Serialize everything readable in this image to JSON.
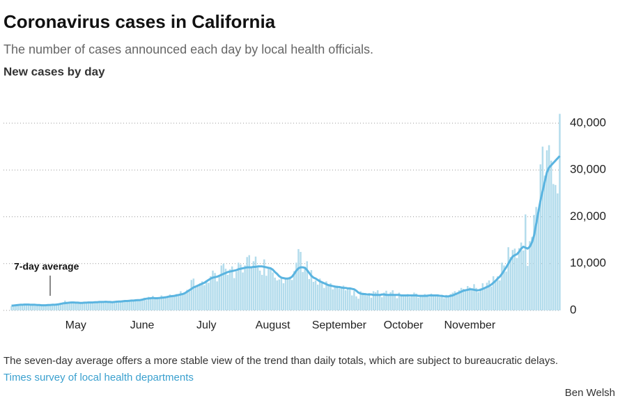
{
  "chart_data": {
    "type": "bar-line",
    "title": "Coronavirus cases in California",
    "subtitle": "The number of cases announced each day by local health officials.",
    "chart_heading": "New cases by day",
    "note": "The seven-day average offers a more stable view of the trend than daily totals, which are subject to bureaucratic delays.",
    "source": "Times survey of local health departments",
    "byline": "Ben Welsh",
    "categories": [
      null,
      null,
      null,
      null,
      null,
      null,
      null,
      null,
      null,
      null,
      null,
      null,
      null,
      null,
      null,
      null,
      null,
      null,
      null,
      null,
      null,
      null,
      null,
      null,
      null,
      null,
      null,
      null,
      null,
      null,
      "May",
      null,
      null,
      null,
      null,
      null,
      null,
      null,
      null,
      null,
      null,
      null,
      null,
      null,
      null,
      null,
      null,
      null,
      null,
      null,
      null,
      null,
      null,
      null,
      null,
      null,
      null,
      null,
      null,
      null,
      null,
      "June",
      null,
      null,
      null,
      null,
      null,
      null,
      null,
      null,
      null,
      null,
      null,
      null,
      null,
      null,
      null,
      null,
      null,
      null,
      null,
      null,
      null,
      null,
      null,
      null,
      null,
      null,
      null,
      null,
      null,
      "July",
      null,
      null,
      null,
      null,
      null,
      null,
      null,
      null,
      null,
      null,
      null,
      null,
      null,
      null,
      null,
      null,
      null,
      null,
      null,
      null,
      null,
      null,
      null,
      null,
      null,
      null,
      null,
      null,
      null,
      null,
      "August",
      null,
      null,
      null,
      null,
      null,
      null,
      null,
      null,
      null,
      null,
      null,
      null,
      null,
      null,
      null,
      null,
      null,
      null,
      null,
      null,
      null,
      null,
      null,
      null,
      null,
      null,
      null,
      null,
      null,
      null,
      "September",
      null,
      null,
      null,
      null,
      null,
      null,
      null,
      null,
      null,
      null,
      null,
      null,
      null,
      null,
      null,
      null,
      null,
      null,
      null,
      null,
      null,
      null,
      null,
      null,
      null,
      null,
      null,
      null,
      null,
      "October",
      null,
      null,
      null,
      null,
      null,
      null,
      null,
      null,
      null,
      null,
      null,
      null,
      null,
      null,
      null,
      null,
      null,
      null,
      null,
      null,
      null,
      null,
      null,
      null,
      null,
      null,
      null,
      null,
      null,
      null,
      "November",
      null,
      null,
      null,
      null,
      null,
      null,
      null,
      null,
      null,
      null,
      null,
      null,
      null,
      null,
      null,
      null,
      null,
      null,
      null,
      null,
      null,
      null,
      null,
      null,
      null,
      null,
      null,
      null,
      null,
      null,
      null,
      null,
      null,
      null,
      null,
      null,
      null,
      null,
      null,
      null,
      null,
      null
    ],
    "series": [
      {
        "kind": "bar",
        "color": "#b3dcec",
        "values": [
          900,
          1100,
          1200,
          1300,
          1000,
          1200,
          1400,
          1300,
          1100,
          1200,
          1300,
          1000,
          1100,
          1200,
          1000,
          1200,
          1300,
          1100,
          1200,
          1400,
          1300,
          1200,
          1500,
          1600,
          1300,
          2100,
          1700,
          1800,
          1500,
          1800,
          1700,
          1600,
          1500,
          1400,
          1800,
          1700,
          1900,
          1600,
          1500,
          1800,
          1700,
          1900,
          1800,
          1600,
          2000,
          1900,
          1700,
          1600,
          1900,
          2100,
          2000,
          1800,
          2100,
          2200,
          1900,
          2000,
          2300,
          2100,
          2400,
          2200,
          2300,
          2400,
          2700,
          2200,
          2900,
          2600,
          3100,
          2400,
          2500,
          2800,
          3200,
          2600,
          3000,
          2700,
          3400,
          3100,
          2900,
          3500,
          3200,
          4100,
          3600,
          3800,
          4400,
          4100,
          6500,
          6800,
          4900,
          5200,
          5800,
          6200,
          5400,
          6100,
          5900,
          7300,
          8500,
          8000,
          6200,
          7500,
          9600,
          10000,
          8900,
          7600,
          8800,
          9400,
          6900,
          8300,
          10200,
          9800,
          8100,
          9600,
          11400,
          11800,
          9400,
          10500,
          11500,
          9200,
          8500,
          7600,
          10900,
          7400,
          9300,
          9000,
          8100,
          7000,
          6400,
          6600,
          6900,
          5800,
          6800,
          7000,
          7200,
          6500,
          8400,
          10200,
          13100,
          12500,
          8200,
          9300,
          10500,
          6700,
          8600,
          6100,
          6400,
          5500,
          6800,
          5900,
          4800,
          6200,
          5400,
          5800,
          4500,
          5000,
          5300,
          4700,
          5100,
          5300,
          4300,
          4700,
          4500,
          3200,
          4200,
          3000,
          2500,
          4100,
          3800,
          3300,
          3100,
          3700,
          2700,
          4100,
          3900,
          4300,
          3400,
          2800,
          3800,
          4200,
          3500,
          3900,
          4300,
          3200,
          2600,
          3800,
          3300,
          3400,
          3200,
          3500,
          2900,
          3100,
          3800,
          3600,
          2700,
          3300,
          3200,
          3500,
          3400,
          2900,
          3600,
          3300,
          3000,
          3400,
          2800,
          3200,
          2600,
          3300,
          3200,
          3500,
          3800,
          4100,
          3600,
          4300,
          4800,
          4600,
          4500,
          5200,
          4900,
          4400,
          5600,
          4800,
          3900,
          4700,
          5800,
          4800,
          5900,
          6400,
          5100,
          7300,
          6200,
          7300,
          6400,
          10200,
          9600,
          8300,
          13500,
          11400,
          12900,
          13200,
          11200,
          13300,
          14500,
          12800,
          20500,
          9500,
          14800,
          15700,
          20400,
          22100,
          21600,
          31200,
          35000,
          28800,
          34200,
          35300,
          32000,
          27000,
          26800,
          25000,
          42000
        ]
      },
      {
        "kind": "line",
        "name": "7-day average",
        "color": "#5ab4e0",
        "values": [
          1000,
          1050,
          1100,
          1150,
          1200,
          1200,
          1250,
          1250,
          1250,
          1200,
          1200,
          1200,
          1150,
          1150,
          1100,
          1100,
          1100,
          1150,
          1150,
          1200,
          1200,
          1250,
          1300,
          1400,
          1500,
          1550,
          1600,
          1650,
          1700,
          1700,
          1650,
          1650,
          1600,
          1600,
          1650,
          1650,
          1700,
          1700,
          1700,
          1750,
          1750,
          1800,
          1800,
          1800,
          1850,
          1800,
          1800,
          1750,
          1800,
          1850,
          1900,
          1900,
          1950,
          2000,
          2000,
          2050,
          2100,
          2100,
          2150,
          2200,
          2200,
          2300,
          2400,
          2500,
          2550,
          2600,
          2650,
          2600,
          2600,
          2650,
          2700,
          2750,
          2800,
          2900,
          3000,
          3050,
          3100,
          3200,
          3300,
          3400,
          3500,
          3700,
          4000,
          4300,
          4600,
          4900,
          5100,
          5300,
          5500,
          5700,
          5900,
          6200,
          6500,
          6800,
          7000,
          7100,
          7200,
          7400,
          7600,
          7800,
          8000,
          8200,
          8300,
          8400,
          8500,
          8600,
          8800,
          8900,
          9000,
          9100,
          9200,
          9200,
          9200,
          9300,
          9300,
          9400,
          9400,
          9400,
          9300,
          9200,
          9100,
          9000,
          8700,
          8200,
          7800,
          7300,
          7000,
          6900,
          6800,
          6800,
          6900,
          7200,
          7800,
          8500,
          9000,
          9200,
          9200,
          9100,
          8600,
          8000,
          7400,
          7000,
          6800,
          6500,
          6200,
          6000,
          5800,
          5600,
          5400,
          5300,
          5200,
          5100,
          5000,
          5000,
          4900,
          4800,
          4800,
          4700,
          4700,
          4600,
          4500,
          4200,
          3800,
          3600,
          3500,
          3500,
          3400,
          3400,
          3400,
          3300,
          3300,
          3300,
          3300,
          3400,
          3400,
          3300,
          3300,
          3300,
          3300,
          3300,
          3300,
          3300,
          3200,
          3200,
          3200,
          3200,
          3200,
          3200,
          3200,
          3200,
          3100,
          3100,
          3100,
          3100,
          3100,
          3200,
          3200,
          3200,
          3200,
          3200,
          3100,
          3100,
          3000,
          3000,
          3000,
          3100,
          3200,
          3400,
          3600,
          3800,
          4000,
          4200,
          4300,
          4400,
          4500,
          4500,
          4400,
          4300,
          4300,
          4400,
          4600,
          4800,
          5000,
          5200,
          5500,
          5900,
          6300,
          6800,
          7200,
          7800,
          8500,
          9200,
          10000,
          10800,
          11500,
          11800,
          12000,
          12500,
          13200,
          13600,
          13400,
          13200,
          13600,
          14500,
          16000,
          18500,
          21000,
          23500,
          25500,
          27500,
          29500,
          30500,
          31000,
          31500,
          32000,
          32500,
          33000
        ]
      }
    ],
    "ylim": [
      0,
      42500
    ],
    "yticks": [
      0,
      {
        "value": 10000,
        "label": "10,000"
      },
      {
        "value": 20000,
        "label": "20,000"
      },
      {
        "value": 30000,
        "label": "30,000"
      },
      {
        "value": 40000,
        "label": "40,000"
      }
    ],
    "grid": true
  }
}
